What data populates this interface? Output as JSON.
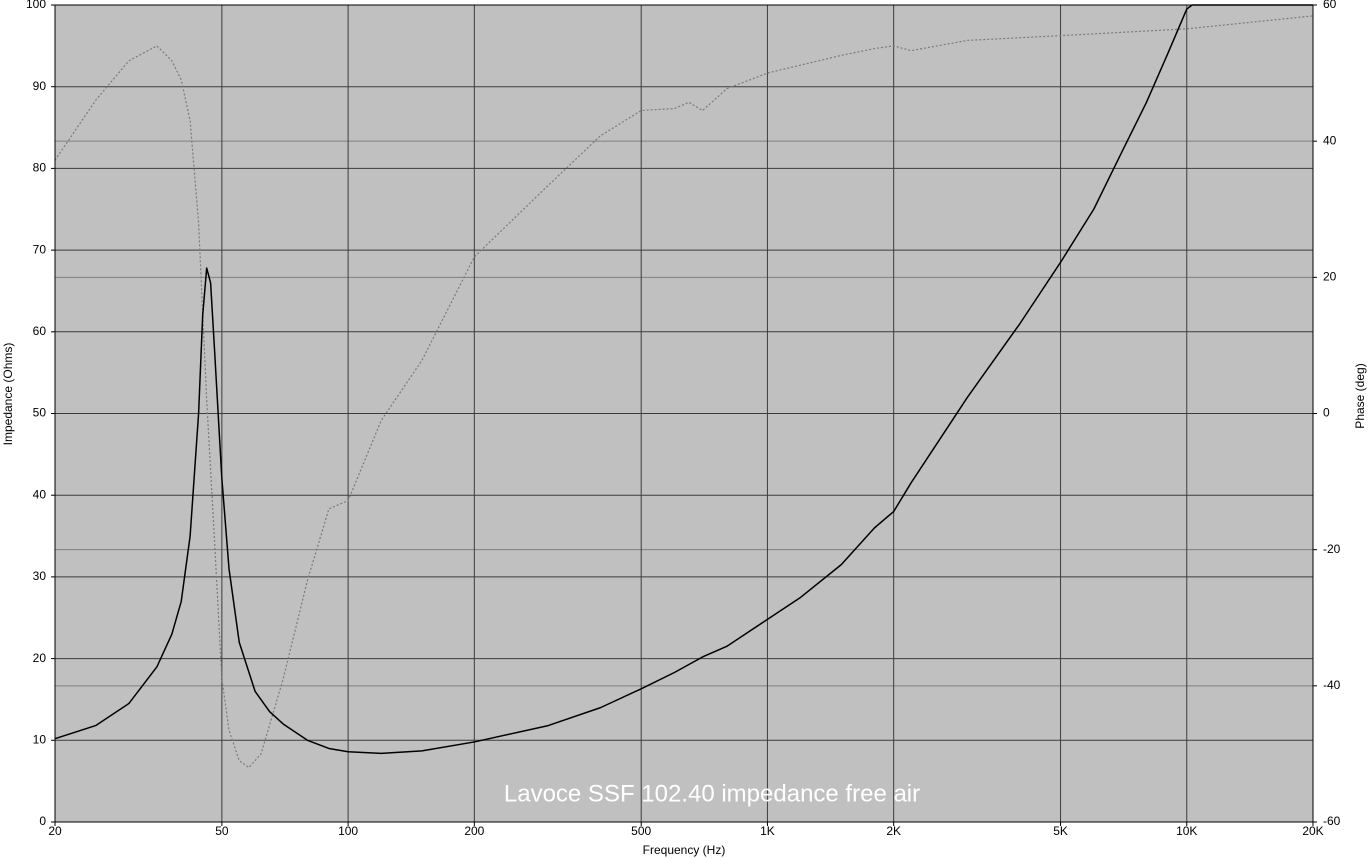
{
  "chart_data": {
    "type": "line",
    "title": "Lavoce SSF 102.40 impedance free air",
    "xlabel": "Frequency (Hz)",
    "ylabel": "Impedance (Ohms)",
    "y2label": "Phase (deg)",
    "xscale": "log",
    "grid": true,
    "background": "#c0c0c0",
    "xlim": [
      20,
      20000
    ],
    "xticks": [
      20,
      50,
      100,
      200,
      500,
      {
        "value": 1000,
        "label": "1K"
      },
      {
        "value": 2000,
        "label": "2K"
      },
      {
        "value": 5000,
        "label": "5K"
      },
      {
        "value": 10000,
        "label": "10K"
      },
      {
        "value": 20000,
        "label": "20K"
      }
    ],
    "ylim": [
      0,
      100
    ],
    "yticks": [
      0,
      10,
      20,
      30,
      40,
      50,
      60,
      70,
      80,
      90,
      100
    ],
    "y2lim": [
      -60,
      60
    ],
    "y2ticks": [
      -60,
      -40,
      -20,
      0,
      20,
      40,
      60
    ],
    "series": [
      {
        "name": "Impedance",
        "color": "#000000",
        "style": "solid",
        "x": [
          20,
          25,
          30,
          35,
          38,
          40,
          42,
          44,
          45,
          46,
          47,
          48,
          50,
          52,
          55,
          60,
          65,
          70,
          80,
          90,
          100,
          120,
          150,
          200,
          300,
          400,
          500,
          600,
          700,
          800,
          1000,
          1200,
          1500,
          1800,
          2000,
          2200,
          3000,
          4000,
          5000,
          6000,
          7000,
          8000,
          9000,
          10000,
          10300,
          20000
        ],
        "values": [
          10.2,
          11.8,
          14.5,
          19,
          23,
          27,
          35,
          50,
          62,
          67.8,
          66,
          58,
          42,
          31,
          22,
          16,
          13.5,
          12,
          10,
          9,
          8.6,
          8.4,
          8.7,
          9.8,
          11.8,
          14,
          16.3,
          18.3,
          20.2,
          21.5,
          24.8,
          27.5,
          31.5,
          36,
          38,
          41.5,
          52,
          61,
          68.5,
          75,
          82,
          88,
          94,
          99.5,
          100,
          100
        ]
      },
      {
        "name": "Phase",
        "color": "#7a7a7a",
        "style": "dotted",
        "axis": "y2",
        "x": [
          20,
          25,
          30,
          35,
          38,
          40,
          42,
          44,
          46,
          48,
          50,
          52,
          55,
          58,
          62,
          70,
          80,
          90,
          100,
          120,
          150,
          200,
          300,
          400,
          500,
          600,
          650,
          700,
          800,
          1000,
          1500,
          1800,
          2000,
          2200,
          3000,
          5000,
          10000,
          20000
        ],
        "values": [
          37.2,
          46,
          51.8,
          54,
          51.8,
          49,
          43,
          28,
          2,
          -18.5,
          -39,
          -46.5,
          -51,
          -52,
          -50,
          -39,
          -24.5,
          -14,
          -12.8,
          -1,
          7.8,
          23,
          33.5,
          40.8,
          44.5,
          44.8,
          45.7,
          44.5,
          47.7,
          50,
          52.6,
          53.6,
          54,
          53.3,
          54.8,
          55.5,
          56.5,
          58.4
        ]
      }
    ]
  }
}
